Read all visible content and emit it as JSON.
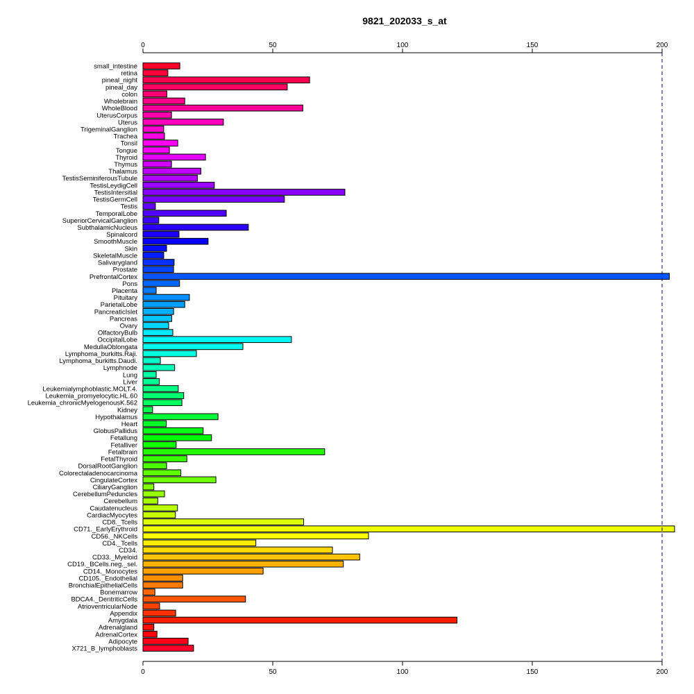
{
  "chart_data": {
    "type": "bar",
    "orientation": "horizontal",
    "title": "9821_202033_s_at",
    "xlim": [
      0,
      200
    ],
    "x_ticks": [
      "0",
      "50",
      "100",
      "150",
      "200"
    ],
    "reference_line": 200,
    "categories": [
      "small_intestine",
      "retina",
      "pineal_night",
      "pineal_day",
      "colon",
      "Wholebrain",
      "WholeBlood",
      "UterusCorpus",
      "Uterus",
      "TrigeminalGanglion",
      "Trachea",
      "Tonsil",
      "Tongue",
      "Thyroid",
      "Thymus",
      "Thalamus",
      "TestisSeminiferousTubule",
      "TestisLeydigCell",
      "TestisIntersitial",
      "TestisGermCell",
      "Testis",
      "TemporalLobe",
      "SuperiorCervicalGanglion",
      "SubthalamicNucleus",
      "Spinalcord",
      "SmoothMuscle",
      "Skin",
      "SkeletalMuscle",
      "Salivarygland",
      "Prostate",
      "PrefrontalCortex",
      "Pons",
      "Placenta",
      "Pituitary",
      "ParietalLobe",
      "PancreaticIslet",
      "Pancreas",
      "Ovary",
      "OlfactoryBulb",
      "OccipitalLobe",
      "MedullaOblongata",
      "Lymphoma_burkitts.Raji.",
      "Lymphoma_burkitts.Daudi.",
      "Lymphnode",
      "Lung",
      "Liver",
      "Leukemialymphoblastic.MOLT.4.",
      "Leukemia_promyelocytic.HL.60",
      "Leukemia_chronicMyelogenousK.562",
      "Kidney",
      "Hypothalamus",
      "Heart",
      "GlobusPallidus",
      "Fetallung",
      "Fetalliver",
      "Fetalbrain",
      "FetalThyroid",
      "DorsalRootGanglion",
      "Colorectaladenocarcinoma",
      "CingulateCortex",
      "CiliaryGanglion",
      "CerebellumPeduncles",
      "Cerebellum",
      "Caudatenucleus",
      "CardiacMyocytes",
      "CD8._Tcells",
      "CD71._EarlyErythroid",
      "CD56._NKCells",
      "CD4._Tcells",
      "CD34.",
      "CD33._Myeloid",
      "CD19._BCells.neg._sel.",
      "CD14._Monocytes",
      "CD105._Endothelial",
      "BronchialEpithelialCells",
      "Bonemarrow",
      "BDCA4._DentriticCells",
      "AtrioventricularNode",
      "Appendix",
      "Amygdala",
      "Adrenalgland",
      "AdrenalCortex",
      "Adipocyte",
      "X721_B_lymphoblasts"
    ],
    "values": [
      14.2,
      9.6,
      64.2,
      55.6,
      9.2,
      16.1,
      61.6,
      11.0,
      31.0,
      8.0,
      8.3,
      13.4,
      10.2,
      24.1,
      11.0,
      22.3,
      21.0,
      27.5,
      77.8,
      54.5,
      4.8,
      32.1,
      6.1,
      40.6,
      13.9,
      25.1,
      9.1,
      8.0,
      12.0,
      11.8,
      202.8,
      14.1,
      5.1,
      17.9,
      16.1,
      11.8,
      11.1,
      9.9,
      11.5,
      57.2,
      38.5,
      20.6,
      6.7,
      12.2,
      5.1,
      6.3,
      13.6,
      15.7,
      15.0,
      3.7,
      28.9,
      9.0,
      23.2,
      26.4,
      12.8,
      70.0,
      16.9,
      9.1,
      14.6,
      28.1,
      4.2,
      8.3,
      5.7,
      13.3,
      12.5,
      61.9,
      204.8,
      86.9,
      43.5,
      73.0,
      83.5,
      77.2,
      46.3,
      15.3,
      15.3,
      4.6,
      39.5,
      6.4,
      12.6,
      121.0,
      4.2,
      5.4,
      17.4,
      19.5
    ]
  }
}
